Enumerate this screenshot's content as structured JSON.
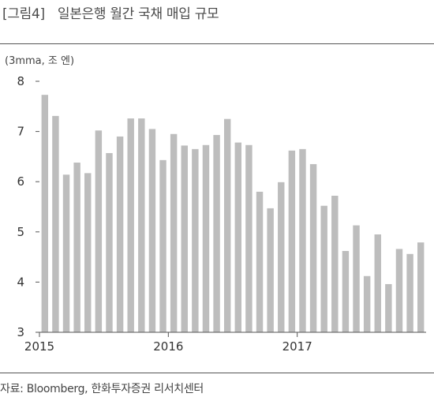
{
  "header": {
    "figure_number": "[그림4]",
    "title": "일본은행 월간 국채 매입 규모"
  },
  "footer": {
    "source": "자료: Bloomberg, 한화투자증권 리서치센터"
  },
  "chart_data": {
    "type": "bar",
    "title": "일본은행 월간 국채 매입 규모",
    "unit_label": "(3mma, 조 엔)",
    "xlabel": "",
    "ylabel": "",
    "ylim": [
      3,
      8
    ],
    "yticks": [
      3,
      4,
      5,
      6,
      7,
      8
    ],
    "x_tick_labels": [
      {
        "label": "2015",
        "index": 0
      },
      {
        "label": "2016",
        "index": 12
      },
      {
        "label": "2017",
        "index": 24
      }
    ],
    "categories": [
      "2015-01",
      "2015-02",
      "2015-03",
      "2015-04",
      "2015-05",
      "2015-06",
      "2015-07",
      "2015-08",
      "2015-09",
      "2015-10",
      "2015-11",
      "2015-12",
      "2016-01",
      "2016-02",
      "2016-03",
      "2016-04",
      "2016-05",
      "2016-06",
      "2016-07",
      "2016-08",
      "2016-09",
      "2016-10",
      "2016-11",
      "2016-12",
      "2017-01",
      "2017-02",
      "2017-03",
      "2017-04",
      "2017-05",
      "2017-06",
      "2017-07",
      "2017-08",
      "2017-09",
      "2017-10",
      "2017-11",
      "2017-12"
    ],
    "values": [
      7.73,
      7.31,
      6.14,
      6.38,
      6.17,
      7.02,
      6.57,
      6.9,
      7.26,
      7.26,
      7.05,
      6.43,
      6.95,
      6.72,
      6.65,
      6.73,
      6.93,
      7.25,
      6.78,
      6.73,
      5.8,
      5.47,
      5.99,
      6.62,
      6.65,
      6.35,
      5.52,
      5.72,
      4.62,
      5.13,
      4.12,
      4.95,
      3.96,
      4.66,
      4.56,
      4.79
    ],
    "bar_color": "#bdbdbd",
    "grid": false
  }
}
